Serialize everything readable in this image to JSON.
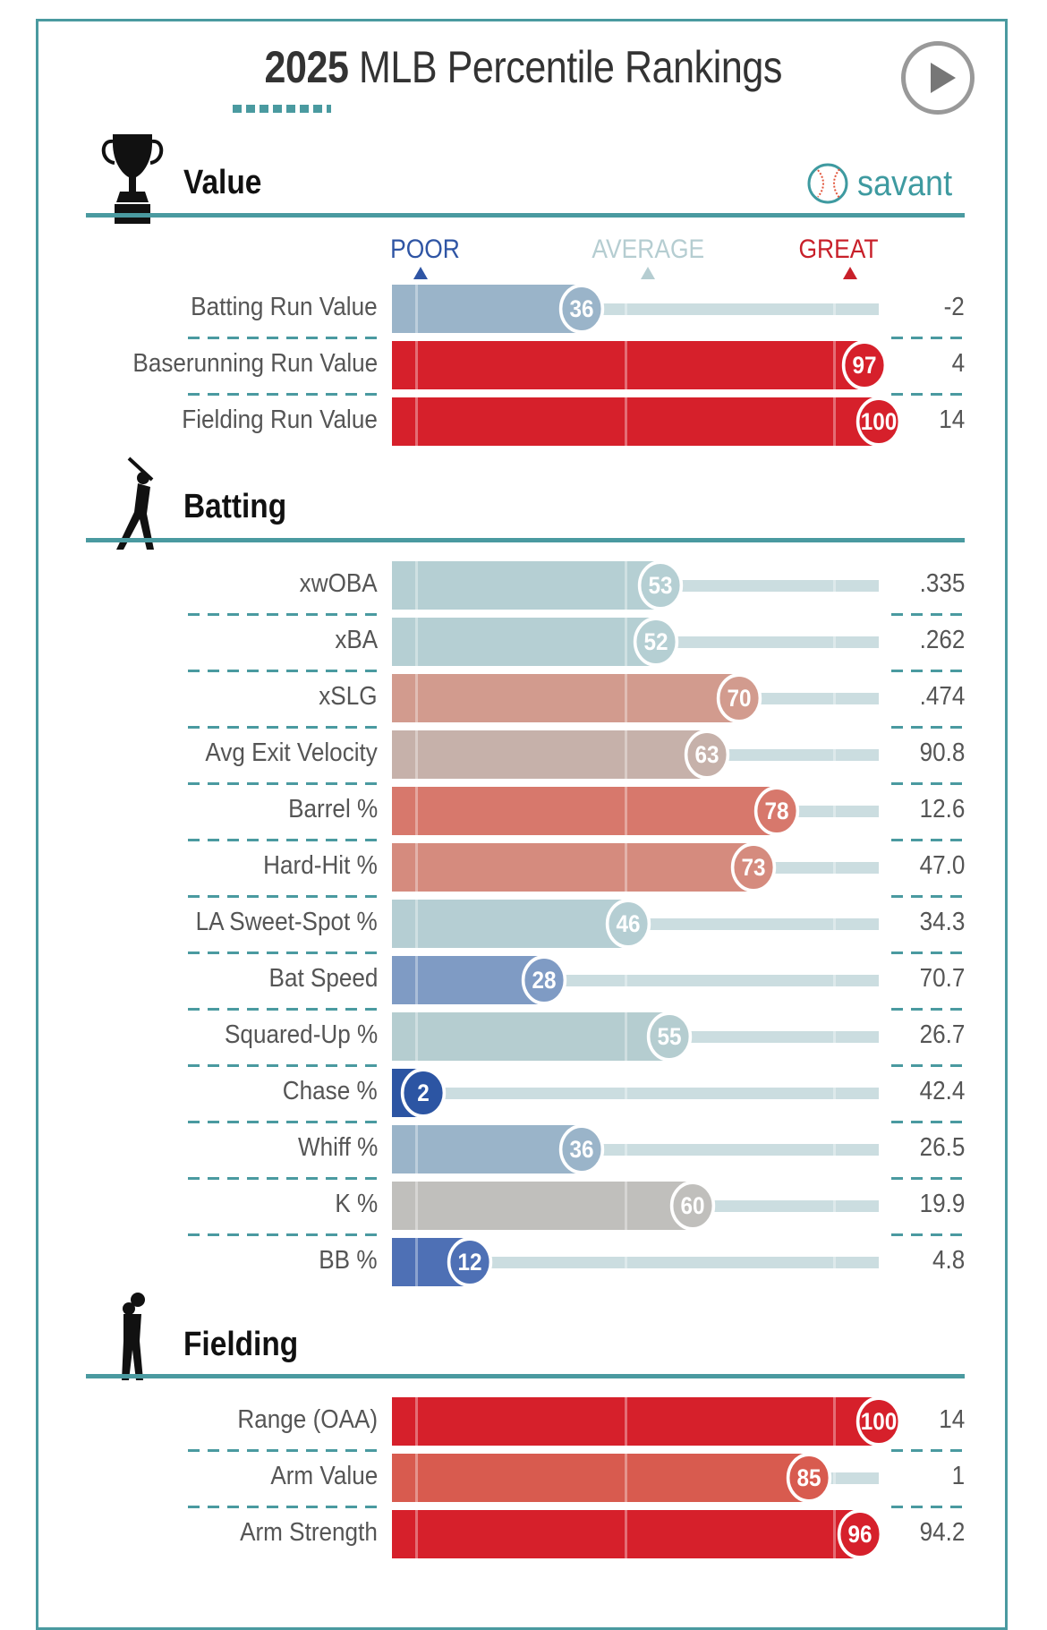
{
  "header": {
    "title_year": "2025",
    "title_rest": " MLB Percentile Rankings",
    "play_icon": "play-circle-icon",
    "brand": "savant"
  },
  "legend": {
    "poor": "POOR",
    "average": "AVERAGE",
    "great": "GREAT",
    "poor_color": "#2f55a4",
    "average_color": "#b5cdd1",
    "great_color": "#c8202a"
  },
  "chart_data": {
    "type": "bar",
    "orientation": "horizontal",
    "xlim": [
      0,
      100
    ],
    "reference_lines": [
      5,
      50,
      95
    ],
    "sections": [
      {
        "title": "Value",
        "icon": "trophy-icon",
        "rows": [
          {
            "label": "Batting Run Value",
            "percentile": 36,
            "value": "-2",
            "color": "#9ab4c9"
          },
          {
            "label": "Baserunning Run Value",
            "percentile": 97,
            "value": "4",
            "color": "#d6202b"
          },
          {
            "label": "Fielding Run Value",
            "percentile": 100,
            "value": "14",
            "color": "#d6202b"
          }
        ]
      },
      {
        "title": "Batting",
        "icon": "batter-icon",
        "rows": [
          {
            "label": "xwOBA",
            "percentile": 53,
            "value": ".335",
            "color": "#b5cfd3"
          },
          {
            "label": "xBA",
            "percentile": 52,
            "value": ".262",
            "color": "#b5cfd3"
          },
          {
            "label": "xSLG",
            "percentile": 70,
            "value": ".474",
            "color": "#d29b8e"
          },
          {
            "label": "Avg Exit Velocity",
            "percentile": 63,
            "value": "90.8",
            "color": "#c6b1aa"
          },
          {
            "label": "Barrel %",
            "percentile": 78,
            "value": "12.6",
            "color": "#d7786c"
          },
          {
            "label": "Hard-Hit %",
            "percentile": 73,
            "value": "47.0",
            "color": "#d58b7e"
          },
          {
            "label": "LA Sweet-Spot %",
            "percentile": 46,
            "value": "34.3",
            "color": "#b5ced3"
          },
          {
            "label": "Bat Speed",
            "percentile": 28,
            "value": "70.7",
            "color": "#7f9bc4"
          },
          {
            "label": "Squared-Up %",
            "percentile": 55,
            "value": "26.7",
            "color": "#b5cdd0"
          },
          {
            "label": "Chase %",
            "percentile": 2,
            "value": "42.4",
            "color": "#2c55a3"
          },
          {
            "label": "Whiff %",
            "percentile": 36,
            "value": "26.5",
            "color": "#9ab4c9"
          },
          {
            "label": "K %",
            "percentile": 60,
            "value": "19.9",
            "color": "#c0bfbc"
          },
          {
            "label": "BB %",
            "percentile": 12,
            "value": "4.8",
            "color": "#4e70b5"
          }
        ]
      },
      {
        "title": "Fielding",
        "icon": "fielder-icon",
        "rows": [
          {
            "label": "Range (OAA)",
            "percentile": 100,
            "value": "14",
            "color": "#d6202b"
          },
          {
            "label": "Arm Value",
            "percentile": 85,
            "value": "1",
            "color": "#d85b4f"
          },
          {
            "label": "Arm Strength",
            "percentile": 96,
            "value": "94.2",
            "color": "#d6202b"
          }
        ]
      }
    ]
  }
}
